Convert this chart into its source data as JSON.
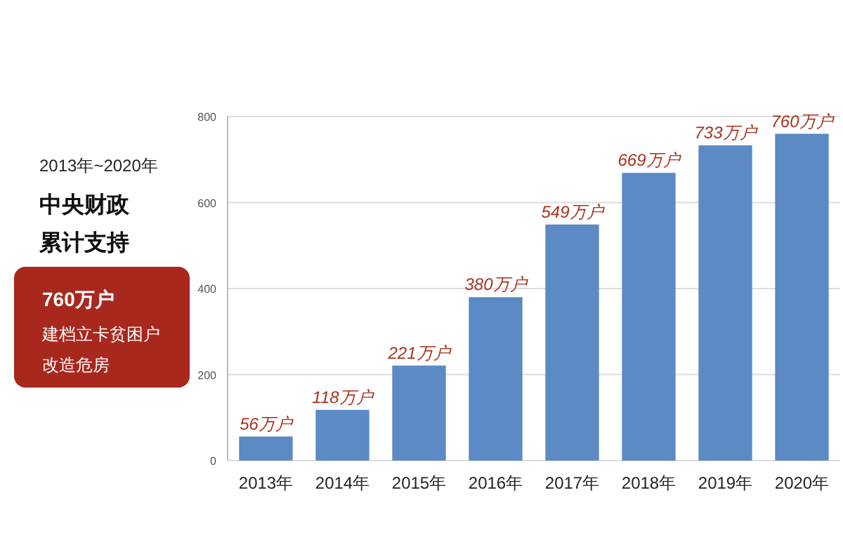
{
  "chart_data": {
    "type": "bar",
    "categories": [
      "2013年",
      "2014年",
      "2015年",
      "2016年",
      "2017年",
      "2018年",
      "2019年",
      "2020年"
    ],
    "values": [
      56,
      118,
      221,
      380,
      549,
      669,
      733,
      760
    ],
    "color": "#5b8ac4",
    "value_labels": [
      "56万户",
      "118万户",
      "221万户",
      "380万户",
      "549万户",
      "669万户",
      "733万户",
      "760万户"
    ],
    "ylim": [
      0,
      800
    ],
    "yticks": [
      0,
      200,
      400,
      600,
      800
    ],
    "grid": "y",
    "annotations": [
      "2013年~2020年",
      "中央财政",
      "累计支持",
      "760万户",
      "建档立卡贫困户",
      "改造危房"
    ]
  }
}
